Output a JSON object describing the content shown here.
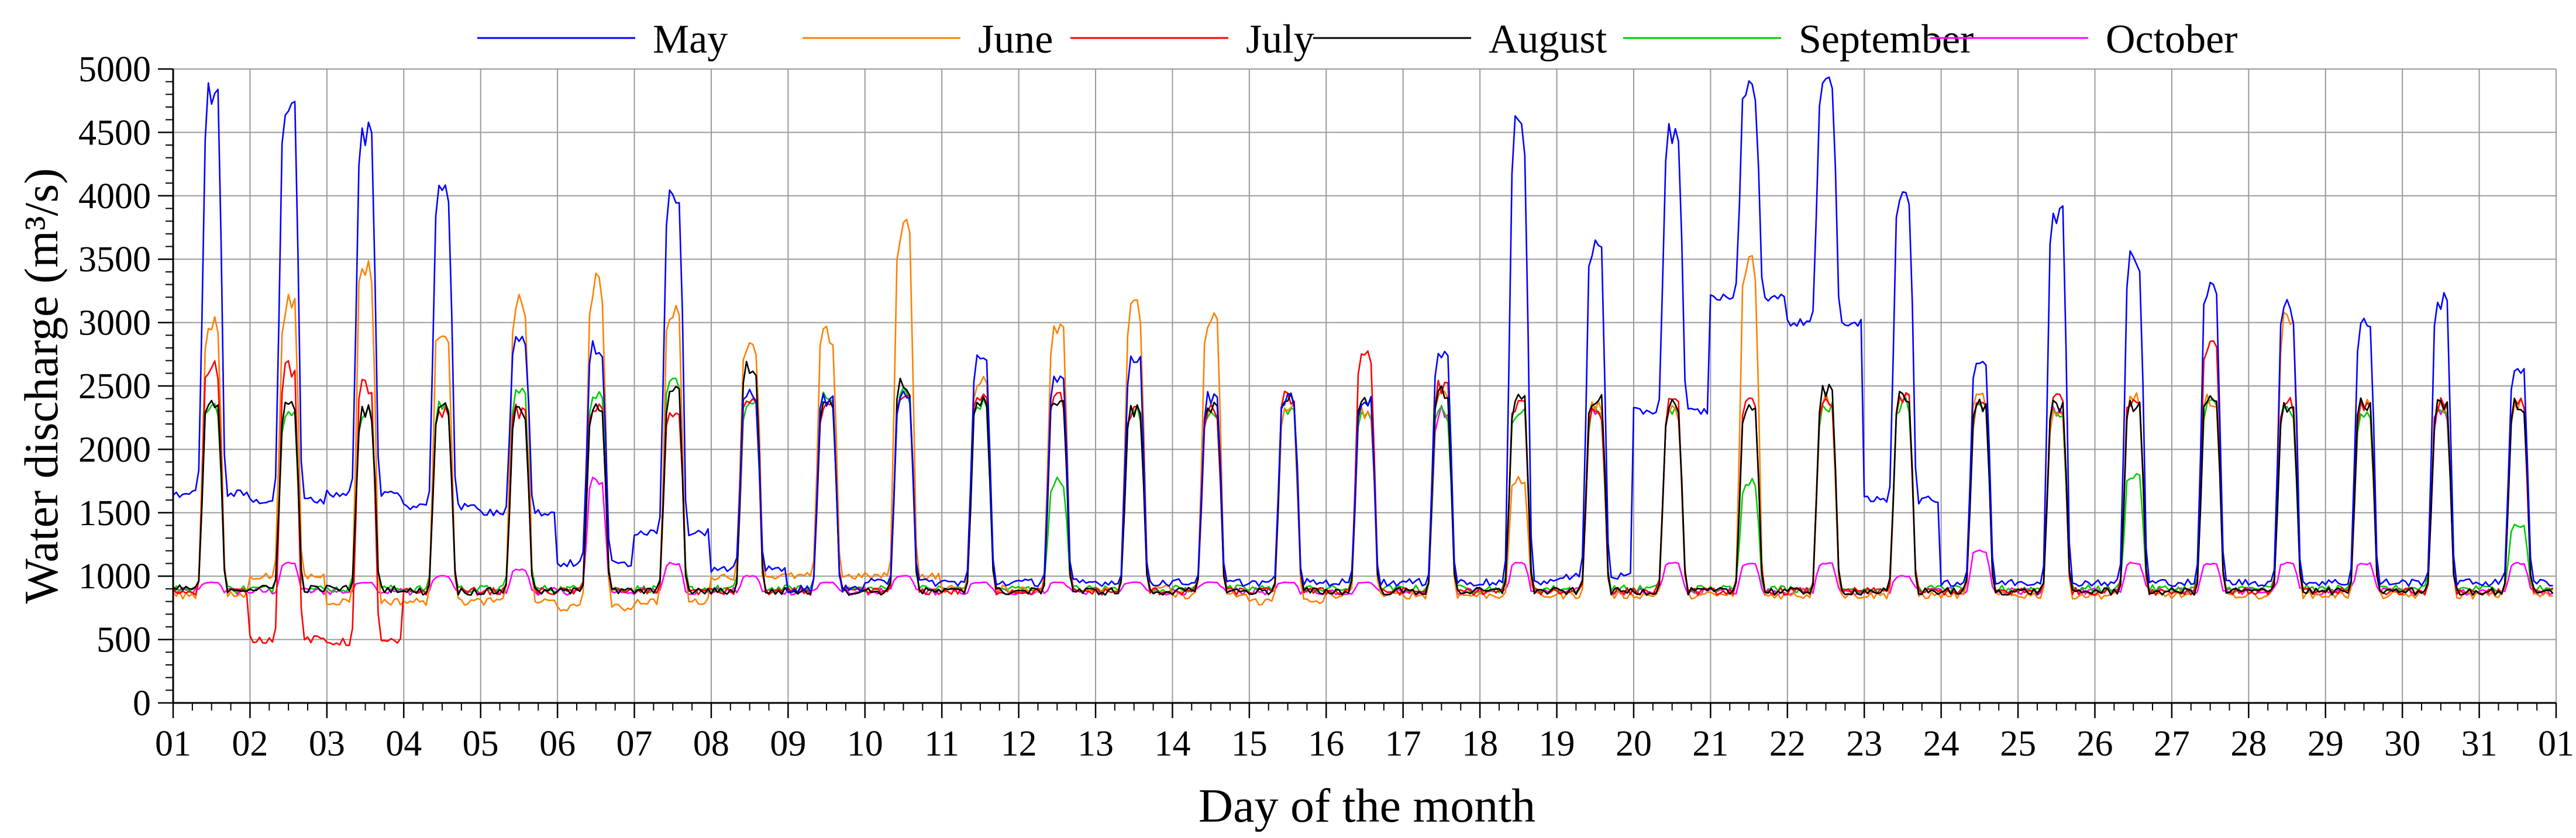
{
  "chart_data": {
    "type": "line",
    "title": "",
    "xlabel": "Day of the month",
    "ylabel": "Water discharge (m³/s)",
    "ylim": [
      0,
      5000
    ],
    "xlim": [
      0,
      31
    ],
    "y_ticks": [
      0,
      500,
      1000,
      1500,
      2000,
      2500,
      3000,
      3500,
      4000,
      4500,
      5000
    ],
    "x_tick_labels": [
      "01",
      "02",
      "03",
      "04",
      "05",
      "06",
      "07",
      "08",
      "09",
      "10",
      "11",
      "12",
      "13",
      "14",
      "15",
      "16",
      "17",
      "18",
      "19",
      "20",
      "21",
      "22",
      "23",
      "24",
      "25",
      "26",
      "27",
      "28",
      "29",
      "30",
      "31",
      "01"
    ],
    "grid": true,
    "legend_position": "top",
    "series": [
      {
        "name": "May",
        "color": "#0000ff",
        "day_low": [
          1650,
          1600,
          1650,
          1550,
          1500,
          1100,
          1350,
          1050,
          900,
          950,
          950,
          950,
          950,
          950,
          950,
          950,
          950,
          950,
          1000,
          2300,
          3200,
          3000,
          1600,
          950,
          950,
          950,
          950,
          950,
          950,
          950,
          950
        ],
        "day_high": [
          4800,
          4700,
          4500,
          4100,
          2900,
          2800,
          4050,
          2450,
          2400,
          2450,
          2700,
          2550,
          2700,
          2400,
          2400,
          2400,
          2750,
          4500,
          3600,
          4500,
          4850,
          4900,
          4050,
          2700,
          3900,
          3500,
          3250,
          3100,
          3000,
          3150,
          2650
        ]
      },
      {
        "name": "June",
        "color": "#ff8000",
        "day_low": [
          850,
          1000,
          800,
          800,
          800,
          750,
          800,
          1000,
          1000,
          1000,
          900,
          900,
          900,
          850,
          800,
          850,
          850,
          850,
          850,
          850,
          850,
          850,
          850,
          850,
          850,
          850,
          850,
          850,
          850,
          850,
          850
        ],
        "day_high": [
          3000,
          3150,
          3450,
          2950,
          3150,
          3300,
          3050,
          2850,
          2900,
          3750,
          2550,
          2950,
          3100,
          3000,
          2350,
          2300,
          2450,
          1750,
          2350,
          2300,
          3450,
          2400,
          2400,
          2400,
          2300,
          2400,
          2400,
          3000,
          2350,
          2350,
          2350
        ]
      },
      {
        "name": "July",
        "color": "#ff0000",
        "day_low": [
          880,
          500,
          480,
          880,
          880,
          880,
          880,
          880,
          880,
          880,
          880,
          880,
          880,
          880,
          880,
          880,
          880,
          880,
          880,
          880,
          880,
          880,
          880,
          880,
          880,
          880,
          880,
          880,
          880,
          880,
          880
        ],
        "day_high": [
          2650,
          2650,
          2500,
          2300,
          2300,
          2350,
          2300,
          2400,
          2350,
          2400,
          2400,
          2400,
          2300,
          2300,
          2400,
          2750,
          2500,
          2350,
          2300,
          2350,
          2350,
          2400,
          2400,
          2350,
          2400,
          2400,
          2850,
          2350,
          2350,
          2350,
          2350
        ]
      },
      {
        "name": "August",
        "color": "#000000",
        "day_low": [
          900,
          900,
          900,
          880,
          880,
          880,
          880,
          880,
          880,
          880,
          880,
          880,
          880,
          880,
          880,
          880,
          880,
          880,
          880,
          880,
          880,
          880,
          880,
          880,
          880,
          880,
          880,
          880,
          880,
          880,
          880
        ],
        "day_high": [
          2350,
          2350,
          2300,
          2350,
          2300,
          2350,
          2450,
          2650,
          2400,
          2500,
          2400,
          2400,
          2300,
          2350,
          2400,
          2400,
          2450,
          2400,
          2400,
          2350,
          2350,
          2450,
          2400,
          2350,
          2350,
          2350,
          2400,
          2350,
          2350,
          2350,
          2350
        ]
      },
      {
        "name": "September",
        "color": "#00cc00",
        "day_low": [
          900,
          900,
          900,
          900,
          900,
          900,
          900,
          900,
          900,
          900,
          900,
          900,
          900,
          900,
          900,
          900,
          900,
          900,
          900,
          900,
          900,
          900,
          900,
          900,
          900,
          900,
          900,
          900,
          900,
          900,
          900
        ],
        "day_high": [
          2350,
          2300,
          2300,
          2350,
          2450,
          2450,
          2500,
          2350,
          2450,
          2450,
          2350,
          1750,
          2300,
          2300,
          2300,
          2300,
          2300,
          2300,
          2300,
          2300,
          1750,
          2350,
          2350,
          2300,
          2300,
          1800,
          2350,
          2300,
          2300,
          2300,
          1400
        ]
      },
      {
        "name": "October",
        "color": "#ff00ff",
        "day_low": [
          880,
          880,
          880,
          880,
          880,
          880,
          880,
          880,
          880,
          880,
          880,
          880,
          880,
          880,
          880,
          880,
          880,
          880,
          880,
          880,
          880,
          880,
          880,
          880,
          880,
          880,
          880,
          880,
          880,
          880,
          880
        ],
        "day_high": [
          950,
          1100,
          950,
          1000,
          1050,
          1750,
          1100,
          1000,
          950,
          1000,
          950,
          950,
          950,
          950,
          950,
          950,
          2300,
          1100,
          2300,
          1100,
          1100,
          1100,
          1000,
          1200,
          2300,
          1100,
          1100,
          1100,
          1100,
          2300,
          1100
        ]
      }
    ]
  }
}
